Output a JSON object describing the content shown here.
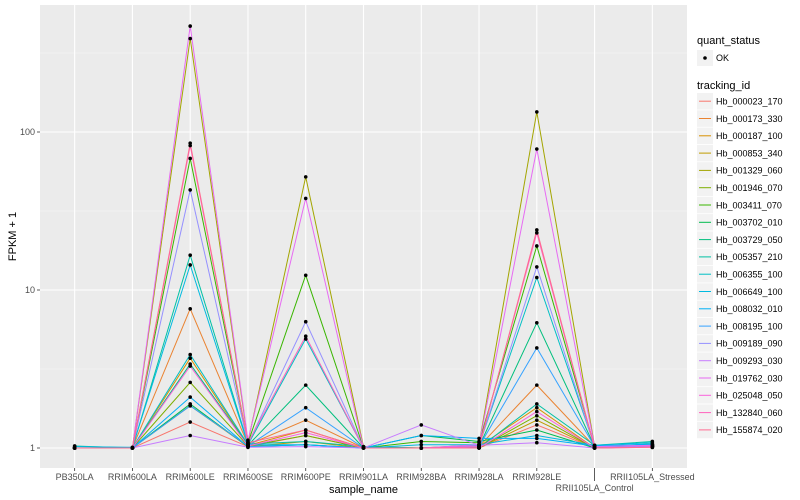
{
  "chart_data": {
    "type": "line",
    "xlabel": "sample_name",
    "ylabel": "FPKM + 1",
    "yscale": "log10",
    "ylim": [
      0.95,
      520
    ],
    "yticks": [
      1,
      10,
      100
    ],
    "ytick_labels": [
      "1",
      "10",
      "100"
    ],
    "grid": true,
    "legend_placement": "right",
    "categories": [
      "PB350LA",
      "RRIM600LA",
      "RRIM600LE",
      "RRIM600SE",
      "RRIM600PE",
      "RRIM901LA",
      "RRIM928BA",
      "RRIM928LA",
      "RRIM928LE",
      "RRII105LA_Control",
      "RRII105LA_Stressed"
    ],
    "shape_legend": {
      "title": "quant_status",
      "entries": [
        "OK"
      ]
    },
    "color_legend_title": "tracking_id",
    "series": [
      {
        "name": "Hb_000023_170",
        "color": "#F8766D",
        "values": [
          1,
          1,
          1.46,
          1.02,
          1.2,
          1,
          1,
          1,
          1.4,
          1,
          1.02
        ]
      },
      {
        "name": "Hb_000173_330",
        "color": "#EA8331",
        "values": [
          1,
          1,
          7.6,
          1.05,
          1.5,
          1,
          1,
          1.02,
          2.5,
          1.02,
          1.04
        ]
      },
      {
        "name": "Hb_000187_100",
        "color": "#D89000",
        "values": [
          1,
          1,
          3.7,
          1.04,
          1.3,
          1,
          1,
          1.02,
          1.8,
          1,
          1.03
        ]
      },
      {
        "name": "Hb_000853_340",
        "color": "#C09B00",
        "values": [
          1,
          1,
          1.85,
          1.02,
          1.1,
          1,
          1,
          1,
          1.5,
          1,
          1.02
        ]
      },
      {
        "name": "Hb_001329_060",
        "color": "#A3A500",
        "values": [
          1,
          1,
          390,
          1.1,
          52,
          1.02,
          1,
          1.05,
          134,
          1.03,
          1.05
        ]
      },
      {
        "name": "Hb_001946_070",
        "color": "#7CAE00",
        "values": [
          1,
          1,
          2.6,
          1.03,
          1.2,
          1,
          1,
          1,
          1.6,
          1,
          1.02
        ]
      },
      {
        "name": "Hb_003411_070",
        "color": "#39B600",
        "values": [
          1,
          1,
          68,
          1.08,
          12.4,
          1,
          1.1,
          1.08,
          19,
          1.02,
          1.06
        ]
      },
      {
        "name": "Hb_003702_010",
        "color": "#00BB4E",
        "values": [
          1,
          1,
          1.9,
          1.02,
          1.05,
          1,
          1.2,
          1.1,
          1.3,
          1,
          1.03
        ]
      },
      {
        "name": "Hb_003729_050",
        "color": "#00BF7D",
        "values": [
          1,
          1,
          3.4,
          1.04,
          2.5,
          1,
          1,
          1.02,
          6.2,
          1.02,
          1.04
        ]
      },
      {
        "name": "Hb_005357_210",
        "color": "#00C1A3",
        "values": [
          1.03,
          1,
          16.6,
          1.06,
          1.1,
          1.02,
          1,
          1,
          1.9,
          1.04,
          1.1
        ]
      },
      {
        "name": "Hb_006355_100",
        "color": "#00BFC4",
        "values": [
          1,
          1,
          3.9,
          1.05,
          4.9,
          1,
          1,
          1.04,
          12,
          1.03,
          1.05
        ]
      },
      {
        "name": "Hb_006649_100",
        "color": "#00BAE0",
        "values": [
          1.02,
          1.01,
          14.4,
          1.05,
          1.05,
          1,
          1.05,
          1.05,
          1.2,
          1.04,
          1.08
        ]
      },
      {
        "name": "Hb_008032_010",
        "color": "#00B0F6",
        "values": [
          1,
          1,
          2.1,
          1.02,
          1.05,
          1,
          1.2,
          1.15,
          1.15,
          1.03,
          1.06
        ]
      },
      {
        "name": "Hb_008195_100",
        "color": "#35A2FF",
        "values": [
          1,
          1,
          1.85,
          1.03,
          1.8,
          1,
          1,
          1.02,
          4.3,
          1.02,
          1.03
        ]
      },
      {
        "name": "Hb_009189_090",
        "color": "#9590FF",
        "values": [
          1,
          1,
          43,
          1.06,
          6.3,
          1,
          1,
          1.03,
          14,
          1.02,
          1.04
        ]
      },
      {
        "name": "Hb_009293_030",
        "color": "#C77CFF",
        "values": [
          1,
          1,
          1.2,
          1.01,
          1.02,
          1,
          1.4,
          1.04,
          1.08,
          1,
          1.02
        ]
      },
      {
        "name": "Hb_019762_030",
        "color": "#E76BF3",
        "values": [
          1,
          1,
          468,
          1.12,
          38,
          1,
          1,
          1.05,
          78,
          1.02,
          1.04
        ]
      },
      {
        "name": "Hb_025048_050",
        "color": "#FA62DB",
        "values": [
          1,
          1,
          3.3,
          1.03,
          1.25,
          1,
          1,
          1,
          1.7,
          1,
          1.02
        ]
      },
      {
        "name": "Hb_132840_060",
        "color": "#FF62BC",
        "values": [
          1,
          1,
          82,
          1.08,
          5.1,
          1,
          1,
          1.02,
          23,
          1,
          1.01
        ]
      },
      {
        "name": "Hb_155874_020",
        "color": "#FF6C91",
        "values": [
          1,
          1,
          85,
          1.08,
          1.3,
          1,
          1,
          1,
          24,
          1,
          1.01
        ]
      }
    ]
  }
}
